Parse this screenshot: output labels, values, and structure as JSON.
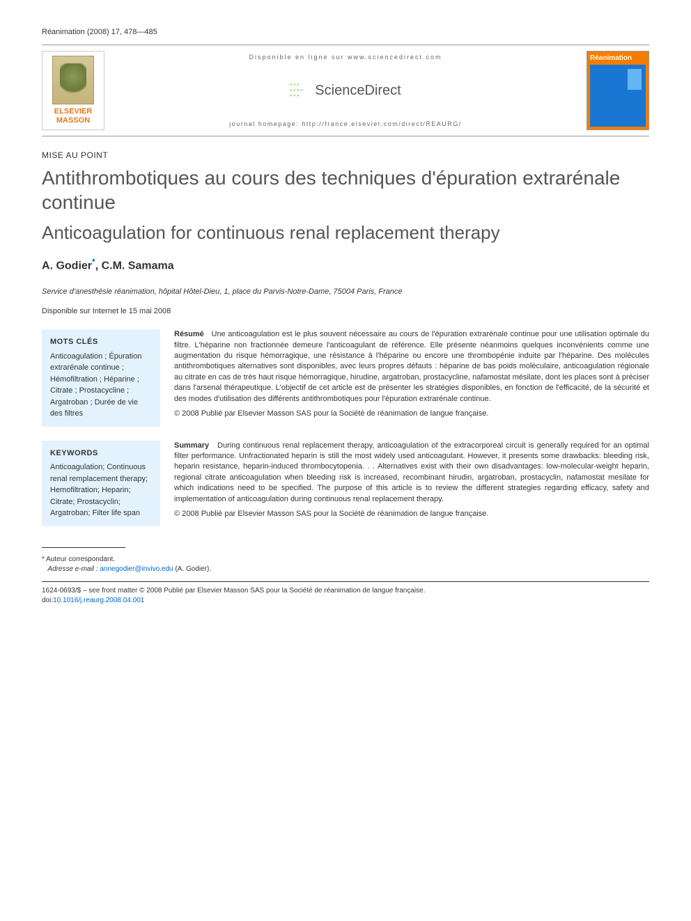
{
  "journal_ref": "Réanimation (2008) 17, 478—485",
  "banner": {
    "publisher": "ELSEVIER MASSON",
    "online_text": "Disponible en ligne sur www.sciencedirect.com",
    "sd_brand": "ScienceDirect",
    "homepage": "journal homepage: http://france.elsevier.com/direct/REAURG/",
    "cover_title": "Réanimation"
  },
  "article_type": "MISE AU POINT",
  "title_fr": "Antithrombotiques au cours des techniques d'épuration extrarénale continue",
  "title_en": "Anticoagulation for continuous renal replacement therapy",
  "authors": "A. Godier",
  "authors_2": ", C.M. Samama",
  "affiliation": "Service d'anesthésie réanimation, hôpital Hôtel-Dieu, 1, place du Parvis-Notre-Dame, 75004 Paris, France",
  "pub_date": "Disponible sur Internet le 15 mai 2008",
  "mots_cles": {
    "title": "MOTS CLÉS",
    "items": "Anticoagulation ; Épuration extrarénale continue ; Hémofiltration ; Héparine ; Citrate ; Prostacycline ; Argatroban ; Durée de vie des filtres"
  },
  "keywords": {
    "title": "KEYWORDS",
    "items": "Anticoagulation; Continuous renal remplacement therapy; Hemofiltration; Heparin; Citrate; Prostacyclin; Argatroban; Filter life span"
  },
  "resume": {
    "label": "Résumé",
    "text": "Une anticoagulation est le plus souvent nécessaire au cours de l'épuration extrarénale continue pour une utilisation optimale du filtre. L'héparine non fractionnée demeure l'anticoagulant de référence. Elle présente néanmoins quelques inconvénients comme une augmentation du risque hémorragique, une résistance à l'héparine ou encore une thrombopénie induite par l'héparine. Des molécules antithrombotiques alternatives sont disponibles, avec leurs propres défauts : héparine de bas poids moléculaire, anticoagulation régionale au citrate en cas de très haut risque hémorragique, hirudine, argatroban, prostacycline, nafamostat mésilate, dont les places sont à préciser dans l'arsenal thérapeutique. L'objectif de cet article est de présenter les stratégies disponibles, en fonction de l'efficacité, de la sécurité et des modes d'utilisation des différents antithrombotiques pour l'épuration extrarénale continue.",
    "copyright": "© 2008 Publié par Elsevier Masson SAS pour la Société de réanimation de langue française."
  },
  "summary": {
    "label": "Summary",
    "text": "During continuous renal replacement therapy, anticoagulation of the extracorporeal circuit is generally required for an optimal filter performance. Unfractionated heparin is still the most widely used anticoagulant. However, it presents some drawbacks: bleeding risk, heparin resistance, heparin-induced thrombocytopenia. . . Alternatives exist with their own disadvantages: low-molecular-weight heparin, regional citrate anticoagulation when bleeding risk is increased, recombinant hirudin, argatroban, prostacyclin, nafamostat mesilate for which indications need to be specified. The purpose of this article is to review the different strategies regarding efficacy, safety and implementation of anticoagulation during continuous renal replacement therapy.",
    "copyright": "© 2008 Publié par Elsevier Masson SAS pour la Société de réanimation de langue française."
  },
  "footnote": {
    "marker": "*",
    "corresponding": "Auteur correspondant.",
    "email_label": "Adresse e-mail :",
    "email": "annegodier@invivo.edu",
    "author_paren": "(A. Godier)."
  },
  "issn_line": "1624-0693/$ – see front matter © 2008 Publié par Elsevier Masson SAS pour la Société de réanimation de langue française.",
  "doi_label": "doi:",
  "doi": "10.1016/j.reaurg.2008.04.001",
  "colors": {
    "keyword_bg": "#e3f2fd",
    "link": "#0066cc",
    "publisher_orange": "#e67817",
    "cover_orange": "#f57c00",
    "cover_blue": "#1976d2"
  }
}
